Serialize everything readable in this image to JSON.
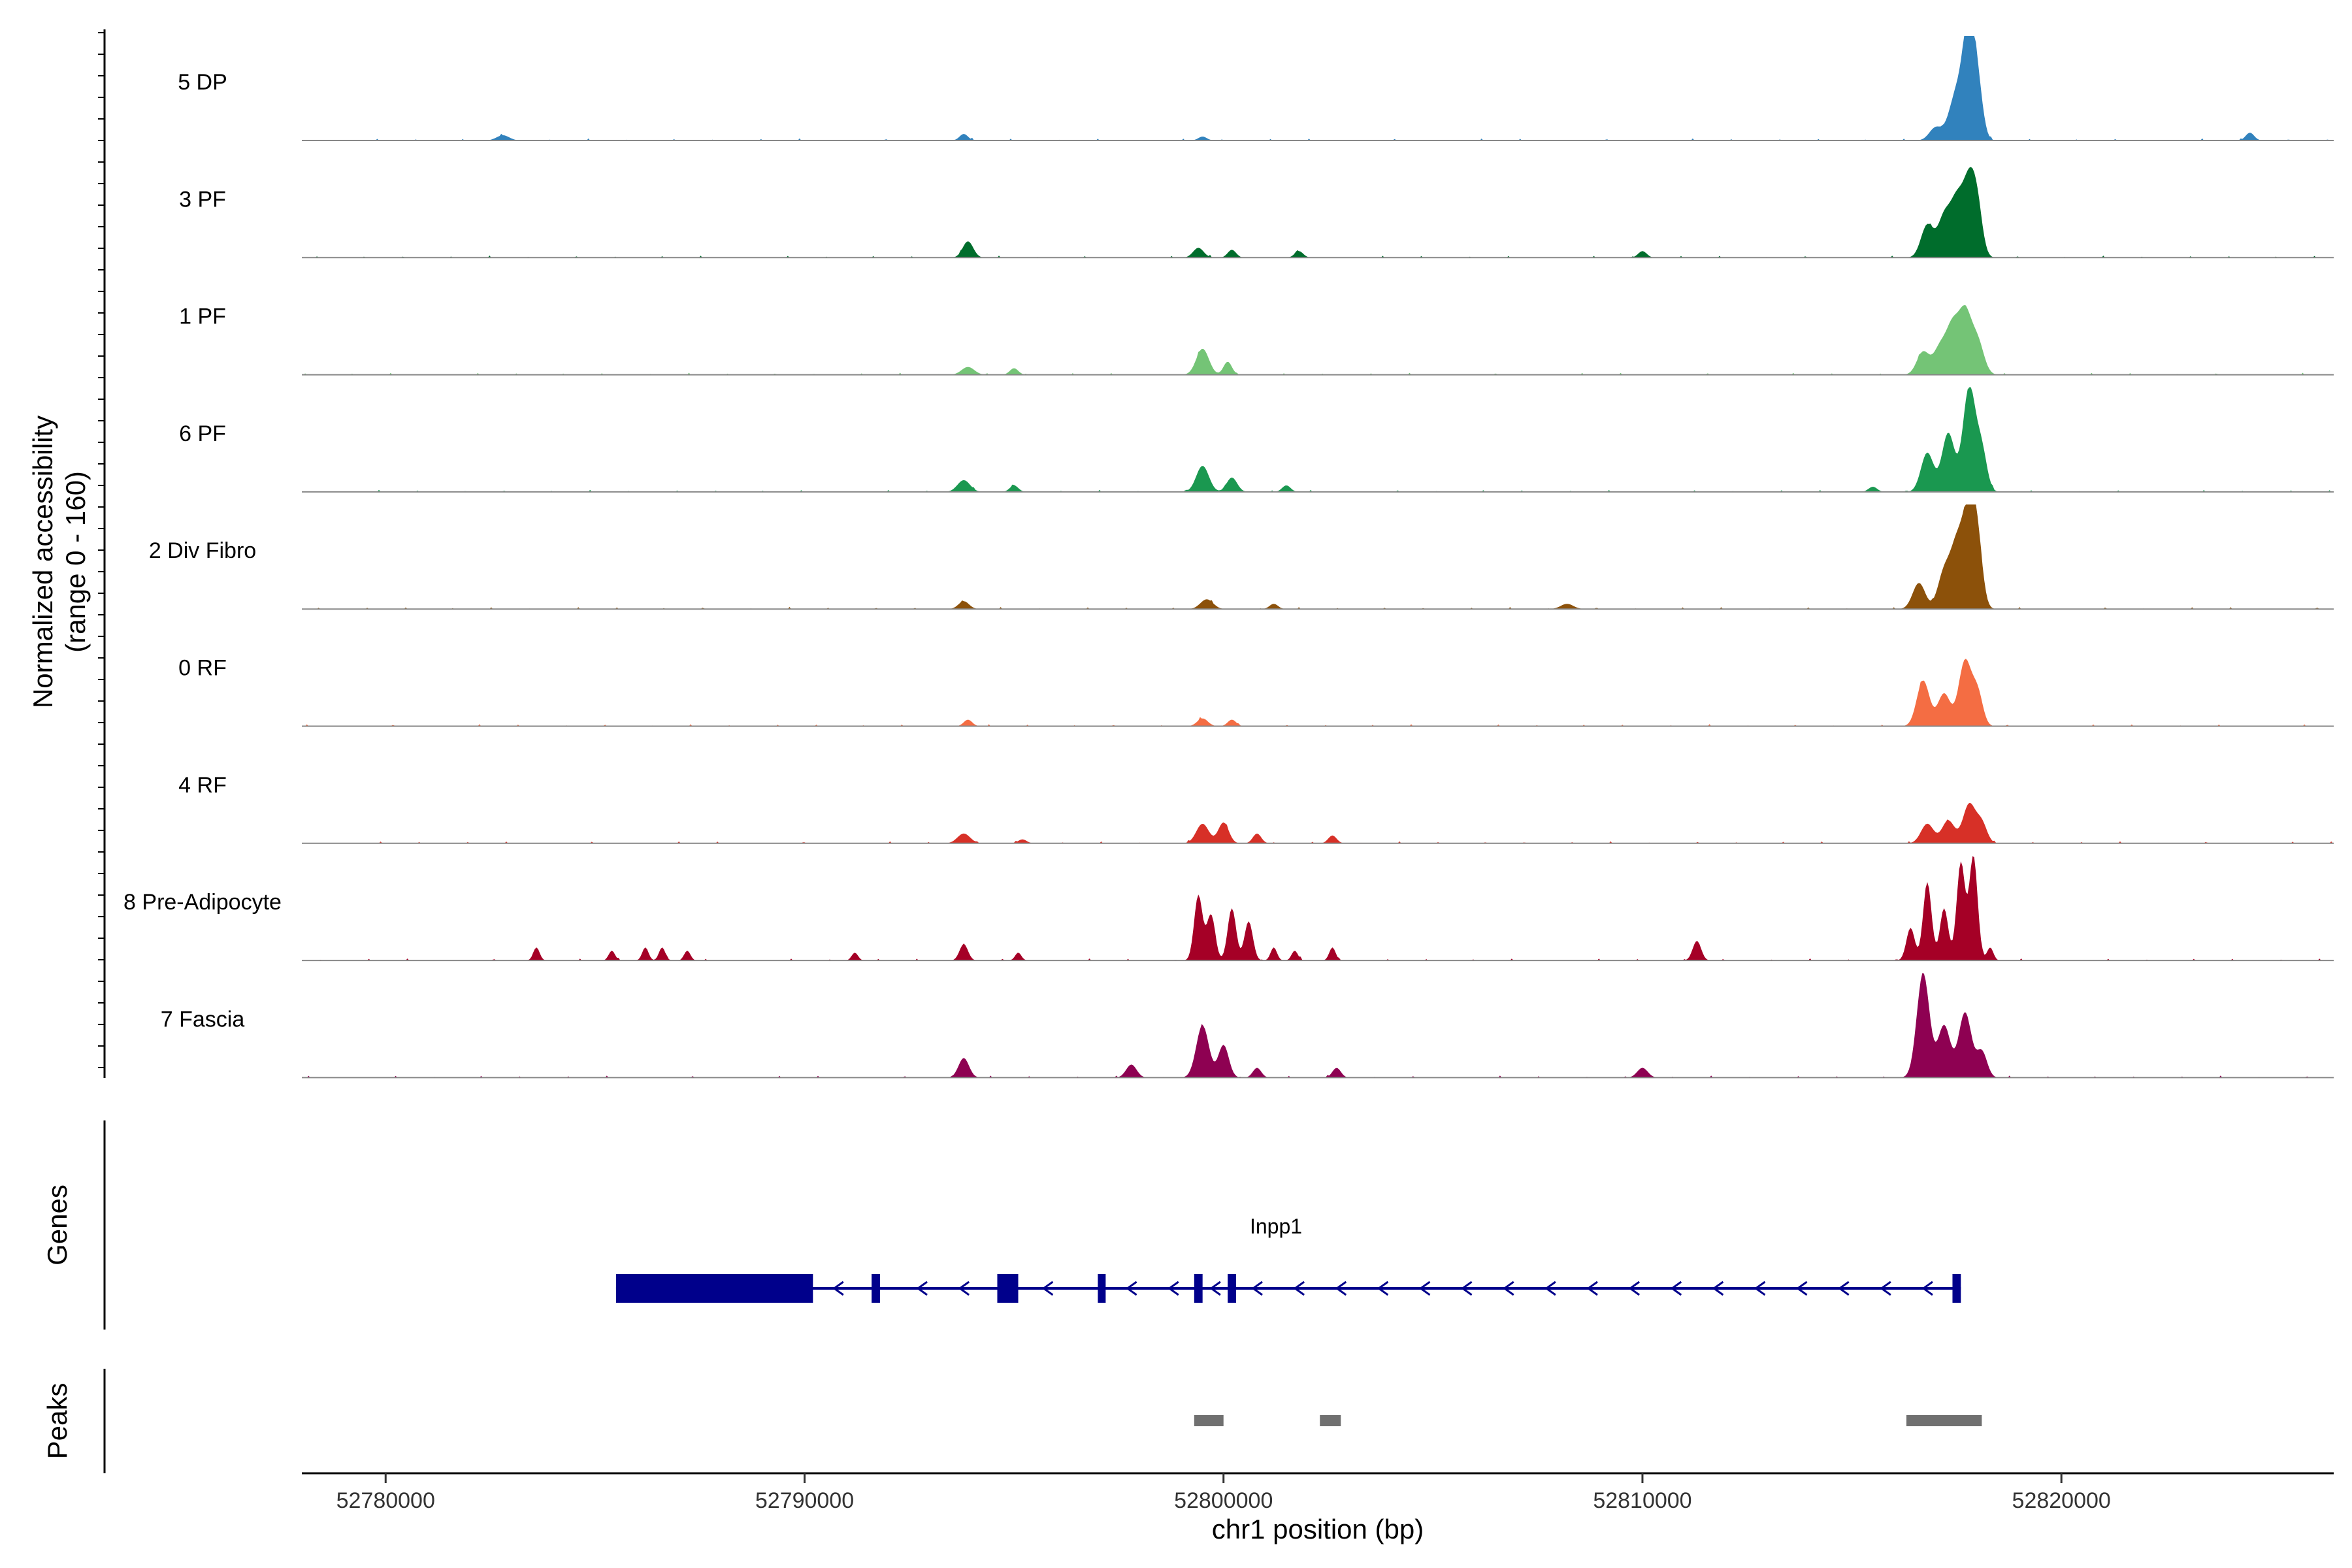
{
  "chart_data": {
    "type": "area",
    "title": "",
    "ylabel": "Normalized accessibility",
    "ylabel_range": "(range 0 - 160)",
    "ylim": [
      0,
      160
    ],
    "xlabel": "chr1 position (bp)",
    "xlim": [
      52778000,
      52826500
    ],
    "x_ticks": [
      52780000,
      52790000,
      52800000,
      52810000,
      52820000
    ],
    "x_tick_labels": [
      "52780000",
      "52790000",
      "52800000",
      "52810000",
      "52820000"
    ],
    "peak_regions_note": "each track: list of [center_bp, width_bp, height (0-160)]",
    "tracks": [
      {
        "label": "5 DP",
        "color": "#3182bd",
        "peaks": [
          [
            52782800,
            300,
            8
          ],
          [
            52793800,
            200,
            10
          ],
          [
            52799500,
            200,
            6
          ],
          [
            52817000,
            300,
            20
          ],
          [
            52817400,
            300,
            38
          ],
          [
            52817600,
            300,
            62
          ],
          [
            52817800,
            250,
            160
          ],
          [
            52818000,
            250,
            80
          ],
          [
            52824500,
            200,
            12
          ]
        ]
      },
      {
        "label": "3 PF",
        "color": "#006d2c",
        "peaks": [
          [
            52793900,
            250,
            25
          ],
          [
            52799400,
            250,
            15
          ],
          [
            52800200,
            200,
            12
          ],
          [
            52801800,
            200,
            10
          ],
          [
            52810000,
            200,
            10
          ],
          [
            52816800,
            300,
            50
          ],
          [
            52817200,
            300,
            60
          ],
          [
            52817500,
            300,
            80
          ],
          [
            52817800,
            300,
            110
          ],
          [
            52818000,
            250,
            60
          ]
        ]
      },
      {
        "label": "1 PF",
        "color": "#74c476",
        "peaks": [
          [
            52793900,
            300,
            12
          ],
          [
            52795000,
            200,
            10
          ],
          [
            52799500,
            300,
            40
          ],
          [
            52800100,
            200,
            20
          ],
          [
            52816700,
            300,
            35
          ],
          [
            52817100,
            300,
            40
          ],
          [
            52817400,
            300,
            70
          ],
          [
            52817700,
            300,
            90
          ],
          [
            52818000,
            300,
            50
          ]
        ]
      },
      {
        "label": "6 PF",
        "color": "#1a9850",
        "peaks": [
          [
            52793800,
            300,
            18
          ],
          [
            52795000,
            200,
            10
          ],
          [
            52799500,
            300,
            40
          ],
          [
            52800200,
            250,
            22
          ],
          [
            52801500,
            200,
            10
          ],
          [
            52815500,
            200,
            8
          ],
          [
            52816800,
            300,
            60
          ],
          [
            52817300,
            300,
            90
          ],
          [
            52817800,
            300,
            160
          ],
          [
            52818100,
            250,
            60
          ]
        ]
      },
      {
        "label": "2 Div Fibro",
        "color": "#8c510a",
        "peaks": [
          [
            52793800,
            250,
            12
          ],
          [
            52799600,
            300,
            15
          ],
          [
            52801200,
            200,
            8
          ],
          [
            52808200,
            300,
            8
          ],
          [
            52816600,
            300,
            40
          ],
          [
            52817200,
            300,
            55
          ],
          [
            52817500,
            300,
            90
          ],
          [
            52817800,
            300,
            150
          ],
          [
            52818000,
            250,
            80
          ]
        ]
      },
      {
        "label": "0 RF",
        "color": "#f46d43",
        "peaks": [
          [
            52793900,
            200,
            10
          ],
          [
            52799500,
            250,
            12
          ],
          [
            52800200,
            200,
            10
          ],
          [
            52816700,
            300,
            70
          ],
          [
            52817200,
            300,
            50
          ],
          [
            52817700,
            300,
            100
          ],
          [
            52818000,
            250,
            50
          ]
        ]
      },
      {
        "label": "4 RF",
        "color": "#d73027",
        "peaks": [
          [
            52793800,
            300,
            15
          ],
          [
            52795200,
            200,
            6
          ],
          [
            52799500,
            300,
            30
          ],
          [
            52800000,
            250,
            32
          ],
          [
            52800800,
            200,
            15
          ],
          [
            52802600,
            200,
            12
          ],
          [
            52816800,
            300,
            30
          ],
          [
            52817300,
            300,
            35
          ],
          [
            52817800,
            300,
            60
          ],
          [
            52818100,
            250,
            30
          ]
        ]
      },
      {
        "label": "8 Pre-Adipocyte",
        "color": "#a50026",
        "peaks": [
          [
            52783600,
            150,
            20
          ],
          [
            52785400,
            150,
            15
          ],
          [
            52786200,
            150,
            20
          ],
          [
            52786600,
            150,
            20
          ],
          [
            52787200,
            150,
            15
          ],
          [
            52791200,
            150,
            12
          ],
          [
            52793800,
            200,
            25
          ],
          [
            52795100,
            150,
            12
          ],
          [
            52799400,
            200,
            100
          ],
          [
            52799700,
            200,
            70
          ],
          [
            52800200,
            200,
            80
          ],
          [
            52800600,
            200,
            60
          ],
          [
            52801200,
            150,
            20
          ],
          [
            52801700,
            150,
            15
          ],
          [
            52802600,
            150,
            20
          ],
          [
            52811300,
            200,
            30
          ],
          [
            52816400,
            200,
            50
          ],
          [
            52816800,
            200,
            120
          ],
          [
            52817200,
            200,
            80
          ],
          [
            52817600,
            200,
            150
          ],
          [
            52817900,
            200,
            160
          ],
          [
            52818300,
            150,
            20
          ]
        ]
      },
      {
        "label": "7 Fascia",
        "color": "#8e0152",
        "peaks": [
          [
            52793800,
            250,
            30
          ],
          [
            52797800,
            250,
            20
          ],
          [
            52799500,
            300,
            80
          ],
          [
            52800000,
            250,
            50
          ],
          [
            52800800,
            200,
            15
          ],
          [
            52802700,
            200,
            15
          ],
          [
            52810000,
            250,
            15
          ],
          [
            52816700,
            300,
            160
          ],
          [
            52817200,
            300,
            80
          ],
          [
            52817700,
            300,
            100
          ],
          [
            52818100,
            250,
            40
          ]
        ]
      }
    ],
    "gene_track_label": "Genes",
    "gene": {
      "name": "Inpp1",
      "color": "#00008b",
      "strand": "-",
      "start": 52785500,
      "end": 52817600,
      "exons": [
        [
          52785500,
          52790200
        ],
        [
          52791600,
          52791800
        ],
        [
          52794600,
          52795100
        ],
        [
          52797000,
          52797100
        ],
        [
          52799300,
          52799500
        ],
        [
          52800100,
          52800300
        ],
        [
          52817400,
          52817600
        ]
      ]
    },
    "peaks_track_label": "Peaks",
    "peak_color": "#707070",
    "called_peaks": [
      [
        52799300,
        52800000
      ],
      [
        52802300,
        52802800
      ],
      [
        52816300,
        52818100
      ]
    ]
  }
}
